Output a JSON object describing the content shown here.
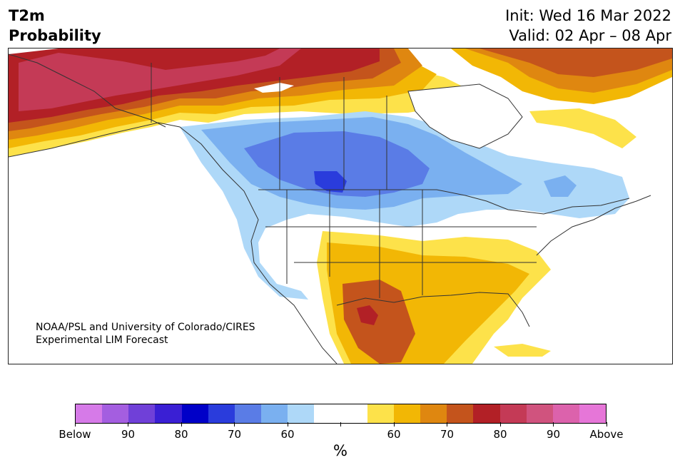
{
  "header": {
    "title_line1": "T2m",
    "title_line2": "Probability",
    "init": "Init: Wed 16 Mar 2022",
    "valid": "Valid: 02 Apr – 08 Apr"
  },
  "credit": {
    "line1": "NOAA/PSL and University of Colorado/CIRES",
    "line2": "Experimental LIM Forecast"
  },
  "colorbar": {
    "colors": [
      "#d67ae8",
      "#a45ee0",
      "#7040d8",
      "#3a1fd4",
      "#0000c8",
      "#2a3cdc",
      "#5a7ce6",
      "#7ab0f0",
      "#aed8f8",
      "#ffffff",
      "#ffffff",
      "#fde24a",
      "#f2b705",
      "#df8710",
      "#c4541c",
      "#b22026",
      "#c43a56",
      "#d0537e",
      "#dc62ac",
      "#e676d8"
    ],
    "tick_labels": [
      "Below",
      "90",
      "80",
      "70",
      "60",
      "",
      "60",
      "70",
      "80",
      "90",
      "Above"
    ],
    "unit": "%"
  },
  "map": {
    "fills": {
      "warm_deep": "#c43a56",
      "warm_red": "#b22026",
      "warm_orange_dark": "#c4541c",
      "warm_orange": "#df8710",
      "warm_gold": "#f2b705",
      "warm_yellow": "#fde24a",
      "cold_light": "#aed8f8",
      "cold_mid": "#7ab0f0",
      "cold_blue": "#5a7ce6",
      "cold_deep": "#2a3cdc"
    }
  }
}
